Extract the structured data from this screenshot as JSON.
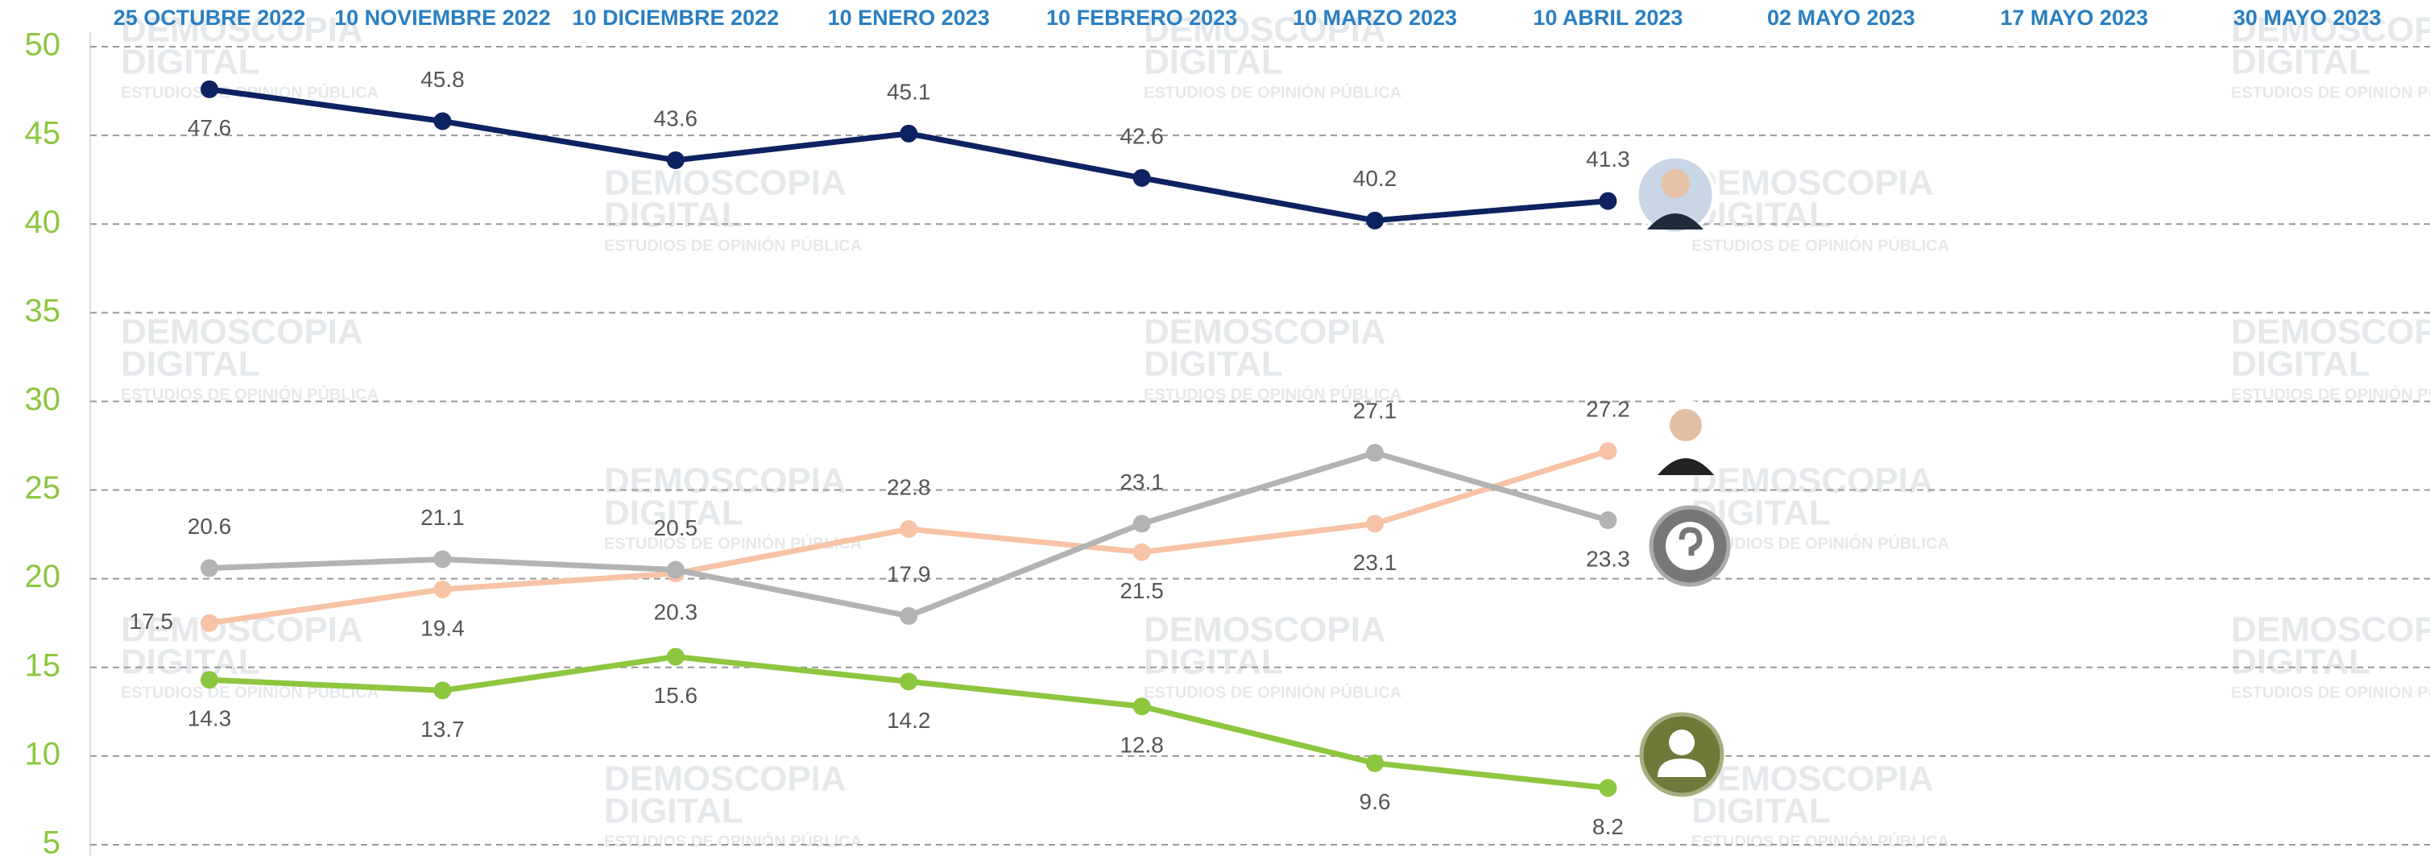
{
  "chart_data": {
    "type": "line",
    "categories": [
      "25 OCTUBRE 2022",
      "10 NOVIEMBRE 2022",
      "10 DICIEMBRE 2022",
      "10 ENERO 2023",
      "10 FEBRERO 2023",
      "10 MARZO 2023",
      "10 ABRIL 2023",
      "02 MAYO 2023",
      "17 MAYO 2023",
      "30 MAYO 2023"
    ],
    "series": [
      {
        "color": "#0d2260",
        "values": [
          47.6,
          45.8,
          43.6,
          45.1,
          42.6,
          40.2,
          41.3,
          null,
          null,
          null
        ]
      },
      {
        "color": "#f7c3a6",
        "values": [
          17.5,
          19.4,
          20.3,
          22.8,
          21.5,
          23.1,
          27.2,
          null,
          null,
          null
        ]
      },
      {
        "color": "#b3b3b3",
        "values": [
          20.6,
          21.1,
          20.5,
          17.9,
          23.1,
          27.1,
          23.3,
          null,
          null,
          null
        ]
      },
      {
        "color": "#8dc63f",
        "values": [
          14.3,
          13.7,
          15.6,
          14.2,
          12.8,
          9.6,
          8.2,
          null,
          null,
          null
        ]
      }
    ],
    "ylim": [
      5,
      50
    ],
    "yticks": [
      5,
      10,
      15,
      20,
      25,
      30,
      35,
      40,
      45,
      50
    ],
    "grid": true,
    "watermark": [
      "DEMOSCOPIA",
      "DIGITAL",
      "ESTUDIOS DE OPINIÓN PÚBLICA"
    ]
  }
}
